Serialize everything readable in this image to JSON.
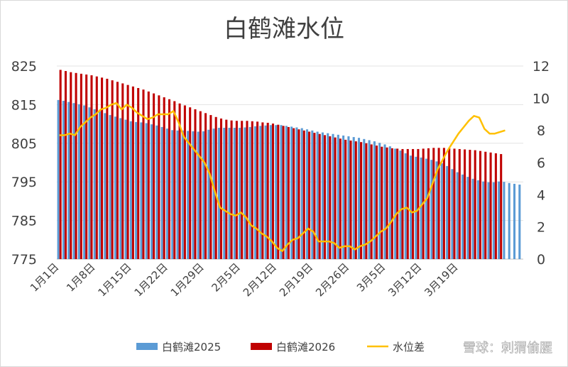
{
  "chart_data": {
    "type": "bar",
    "title": "白鹤滩水位",
    "xlabel": "",
    "ylabel": "",
    "y_left_lim": [
      775,
      825
    ],
    "y_left_ticks": [
      "825",
      "815",
      "805",
      "795",
      "785",
      "775"
    ],
    "y_right_lim": [
      0,
      12
    ],
    "y_right_ticks": [
      "12",
      "10",
      "8",
      "6",
      "4",
      "2",
      "0"
    ],
    "x_tick_labels": [
      "1月1日",
      "1月8日",
      "1月15日",
      "1月22日",
      "1月29日",
      "2月5日",
      "2月12日",
      "2月19日",
      "2月26日",
      "3月5日",
      "3月12日",
      "3月19日"
    ],
    "grid": true,
    "legend_position": "bottom",
    "colors": {
      "series_2025": "#5b9bd5",
      "series_2026": "#c00000",
      "series_diff": "#ffc000"
    },
    "series": [
      {
        "name": "白鹤滩2025",
        "type": "bar",
        "axis": "left",
        "values": [
          816.2,
          816.0,
          815.7,
          815.4,
          815.1,
          814.8,
          814.3,
          813.8,
          813.3,
          812.8,
          812.3,
          811.9,
          811.5,
          811.1,
          810.7,
          810.5,
          810.4,
          810.2,
          809.9,
          809.6,
          809.2,
          808.8,
          808.4,
          808.3,
          808.3,
          808.2,
          808.1,
          808.0,
          808.1,
          808.5,
          808.8,
          809.0,
          809.0,
          809.0,
          809.0,
          809.0,
          809.1,
          809.2,
          809.4,
          809.5,
          809.6,
          809.7,
          809.7,
          809.7,
          809.5,
          809.3,
          809.1,
          808.9,
          808.6,
          808.3,
          808.0,
          807.8,
          807.6,
          807.4,
          807.2,
          807.0,
          806.8,
          806.6,
          806.4,
          806.1,
          805.8,
          805.5,
          805.1,
          804.7,
          804.2,
          803.6,
          803.1,
          802.4,
          801.8,
          801.5,
          801.3,
          801.0,
          800.7,
          800.3,
          799.8,
          799.1,
          798.3,
          797.5,
          796.9,
          796.3,
          795.8,
          795.4,
          795.1,
          794.9,
          794.9,
          795.1,
          795.0,
          794.7,
          794.5,
          794.3
        ]
      },
      {
        "name": "白鹤滩2026",
        "type": "bar",
        "axis": "left",
        "values": [
          824.0,
          823.7,
          823.4,
          823.2,
          823.0,
          822.8,
          822.6,
          822.3,
          822.0,
          821.7,
          821.3,
          820.9,
          820.5,
          820.1,
          819.7,
          819.3,
          818.9,
          818.4,
          817.9,
          817.4,
          816.9,
          816.4,
          815.9,
          815.3,
          814.8,
          814.3,
          813.8,
          813.3,
          812.8,
          812.3,
          811.8,
          811.4,
          811.1,
          810.9,
          810.8,
          810.8,
          810.8,
          810.7,
          810.6,
          810.4,
          810.3,
          810.1,
          809.8,
          809.5,
          809.2,
          808.9,
          808.6,
          808.3,
          808.0,
          807.7,
          807.4,
          807.1,
          806.8,
          806.5,
          806.2,
          805.9,
          805.7,
          805.5,
          805.3,
          805.0,
          804.7,
          804.4,
          804.1,
          803.9,
          803.7,
          803.6,
          803.5,
          803.5,
          803.5,
          803.5,
          803.6,
          803.7,
          803.8,
          803.8,
          803.8,
          803.7,
          803.6,
          803.5,
          803.4,
          803.3,
          803.2,
          803.0,
          802.8,
          802.6,
          802.4,
          802.2
        ]
      },
      {
        "name": "水位差",
        "type": "line",
        "axis": "right",
        "values": [
          7.7,
          7.7,
          7.8,
          7.7,
          8.2,
          8.5,
          8.8,
          9.0,
          9.3,
          9.4,
          9.6,
          9.7,
          9.3,
          9.6,
          9.4,
          9.1,
          8.9,
          8.7,
          8.8,
          9.0,
          9.0,
          9.0,
          9.2,
          8.5,
          7.6,
          7.2,
          6.8,
          6.4,
          6.0,
          5.3,
          4.2,
          3.2,
          3.0,
          2.8,
          2.7,
          2.9,
          2.6,
          2.1,
          1.9,
          1.6,
          1.4,
          1.1,
          0.7,
          0.5,
          0.9,
          1.2,
          1.3,
          1.6,
          1.9,
          1.7,
          1.1,
          1.1,
          1.1,
          1.0,
          0.7,
          0.8,
          0.8,
          0.6,
          0.8,
          0.9,
          1.1,
          1.4,
          1.7,
          1.9,
          2.3,
          2.8,
          3.1,
          3.2,
          2.9,
          3.0,
          3.4,
          3.8,
          4.7,
          5.6,
          6.2,
          6.8,
          7.3,
          7.8,
          8.2,
          8.6,
          8.9,
          8.8,
          8.1,
          7.8,
          7.8,
          7.9,
          8.0
        ]
      }
    ]
  },
  "legend": [
    {
      "label": "白鹤滩2025",
      "color": "#5b9bd5",
      "kind": "bar"
    },
    {
      "label": "白鹤滩2026",
      "color": "#c00000",
      "kind": "bar"
    },
    {
      "label": "水位差",
      "color": "#ffc000",
      "kind": "line"
    }
  ],
  "watermark": "雪球：刺猬偷腥"
}
